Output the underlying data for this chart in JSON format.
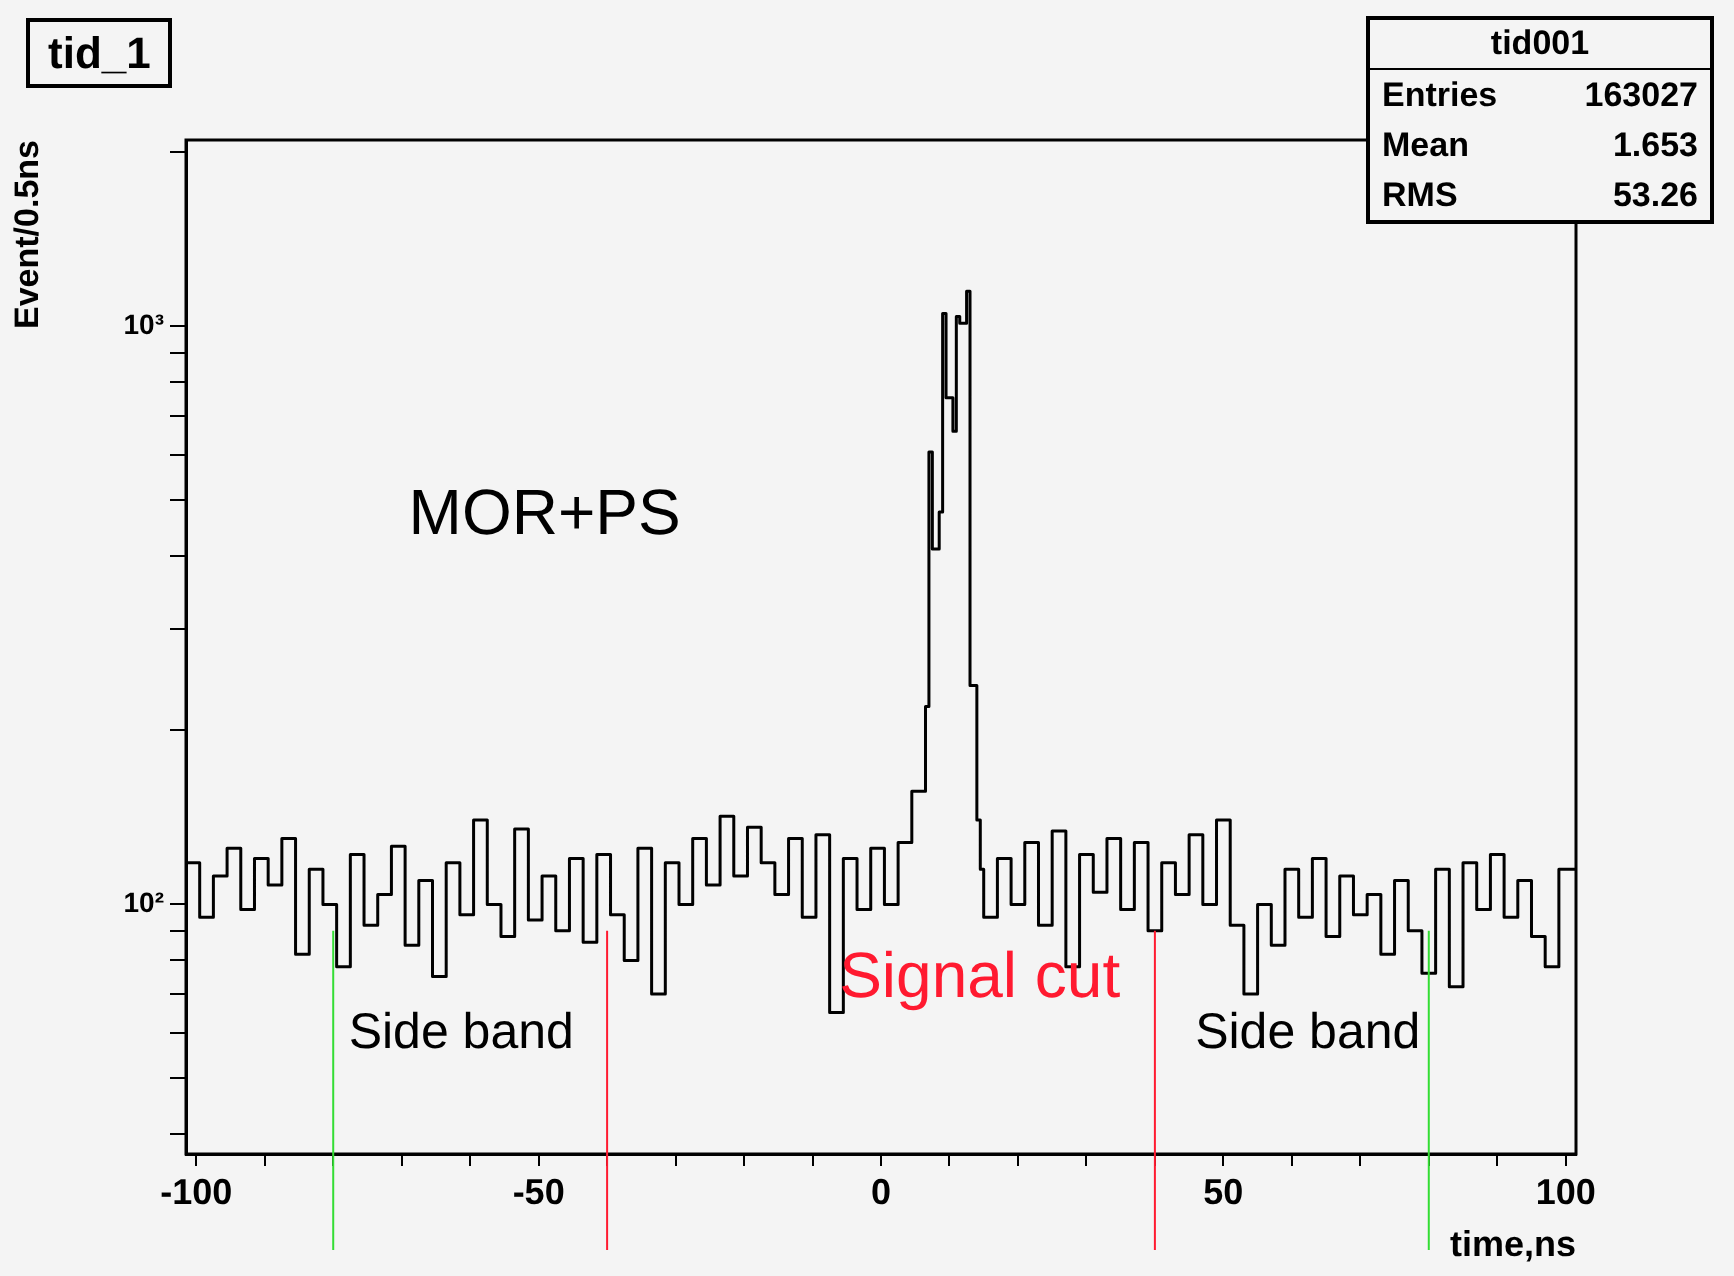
{
  "chart_data": {
    "type": "step",
    "title": "tid_1",
    "ylabel": "Event/0.5ns",
    "xlabel": "time,ns",
    "series": [
      {
        "color": "#000000",
        "x": [
          -101.5,
          -99.5,
          -97.5,
          -95.5,
          -93.5,
          -91.5,
          -89.5,
          -87.5,
          -85.5,
          -83.5,
          -81.5,
          -79.5,
          -77.5,
          -75.5,
          -73.5,
          -71.5,
          -69.5,
          -67.5,
          -65.5,
          -63.5,
          -61.5,
          -59.5,
          -57.5,
          -55.5,
          -53.5,
          -51.5,
          -49.5,
          -47.5,
          -45.5,
          -43.5,
          -41.5,
          -39.5,
          -37.5,
          -35.5,
          -33.5,
          -31.5,
          -29.5,
          -27.5,
          -25.5,
          -23.5,
          -21.5,
          -19.5,
          -17.5,
          -15.5,
          -13.5,
          -11.5,
          -9.5,
          -7.5,
          -5.5,
          -3.5,
          -1.5,
          0.5,
          2.5,
          4.5,
          6.5,
          7,
          7.5,
          8.5,
          9,
          9.5,
          10.5,
          11,
          11.5,
          12.5,
          13,
          14,
          14.5,
          15,
          17,
          19,
          21,
          23,
          25,
          27,
          29,
          31,
          33,
          35,
          37,
          39,
          41,
          43,
          45,
          47,
          49,
          51,
          53,
          55,
          57,
          59,
          61,
          63,
          65,
          67,
          69,
          71,
          73,
          75,
          77,
          79,
          81,
          83,
          85,
          87,
          89,
          91,
          93,
          95,
          97,
          99,
          101,
          101.5
        ],
        "values": [
          105,
          118,
          95,
          112,
          125,
          98,
          120,
          108,
          130,
          82,
          115,
          100,
          78,
          122,
          92,
          104,
          126,
          85,
          110,
          75,
          118,
          96,
          140,
          100,
          88,
          135,
          94,
          112,
          90,
          120,
          86,
          122,
          96,
          80,
          125,
          70,
          118,
          100,
          130,
          108,
          142,
          112,
          136,
          118,
          104,
          130,
          95,
          132,
          65,
          120,
          98,
          125,
          100,
          128,
          157,
          220,
          606,
          412,
          477,
          1052,
          752,
          658,
          1040,
          1012,
          1150,
          239,
          140,
          115,
          95,
          120,
          100,
          128,
          92,
          134,
          78,
          122,
          105,
          130,
          98,
          128,
          90,
          118,
          104,
          132,
          100,
          140,
          92,
          70,
          100,
          85,
          115,
          95,
          120,
          88,
          112,
          96,
          104,
          82,
          110,
          90,
          76,
          115,
          72,
          118,
          98,
          122,
          95,
          110,
          88,
          78,
          115,
          115
        ]
      }
    ],
    "log": "y",
    "xlim": [
      -101.5,
      101.5
    ],
    "xticks": [
      {
        "value": -100,
        "label": "-100"
      },
      {
        "value": -90,
        "label": null
      },
      {
        "value": -80,
        "label": null
      },
      {
        "value": -70,
        "label": null
      },
      {
        "value": -60,
        "label": null
      },
      {
        "value": -50,
        "label": "-50"
      },
      {
        "value": -40,
        "label": null
      },
      {
        "value": -30,
        "label": null
      },
      {
        "value": -20,
        "label": null
      },
      {
        "value": -10,
        "label": null
      },
      0,
      {
        "value": 10,
        "label": null
      },
      {
        "value": 20,
        "label": null
      },
      {
        "value": 30,
        "label": null
      },
      {
        "value": 40,
        "label": null
      },
      50,
      {
        "value": 60,
        "label": null
      },
      {
        "value": 70,
        "label": null
      },
      {
        "value": 80,
        "label": null
      },
      {
        "value": 90,
        "label": null
      },
      100
    ],
    "ylim": [
      37,
      2100
    ],
    "yticks": [
      {
        "value": 40,
        "label": null
      },
      {
        "value": 50,
        "label": null
      },
      {
        "value": 60,
        "label": null
      },
      {
        "value": 70,
        "label": null
      },
      {
        "value": 80,
        "label": null
      },
      {
        "value": 90,
        "label": null
      },
      {
        "value": 100,
        "label": "10²"
      },
      {
        "value": 200,
        "label": null
      },
      {
        "value": 300,
        "label": null
      },
      {
        "value": 400,
        "label": null
      },
      {
        "value": 500,
        "label": null
      },
      {
        "value": 600,
        "label": null
      },
      {
        "value": 700,
        "label": null
      },
      {
        "value": 800,
        "label": null
      },
      {
        "value": 900,
        "label": null
      },
      {
        "value": 1000,
        "label": "10³"
      },
      {
        "value": 2000,
        "label": null
      }
    ],
    "grid": false,
    "legend": false,
    "ref_lines": [
      {
        "axis": "x",
        "value": -80,
        "color": "#33dd33"
      },
      {
        "axis": "x",
        "value": -40,
        "color": "#ff1a30"
      },
      {
        "axis": "x",
        "value": 40,
        "color": "#ff1a30"
      },
      {
        "axis": "x",
        "value": 80,
        "color": "#33dd33"
      }
    ],
    "annotations": [
      "MOR+PS",
      "Side band",
      "Signal cut",
      "Side band",
      "tid001",
      "Entries",
      "163027",
      "Mean",
      "1.653",
      "RMS",
      "53.26"
    ]
  }
}
